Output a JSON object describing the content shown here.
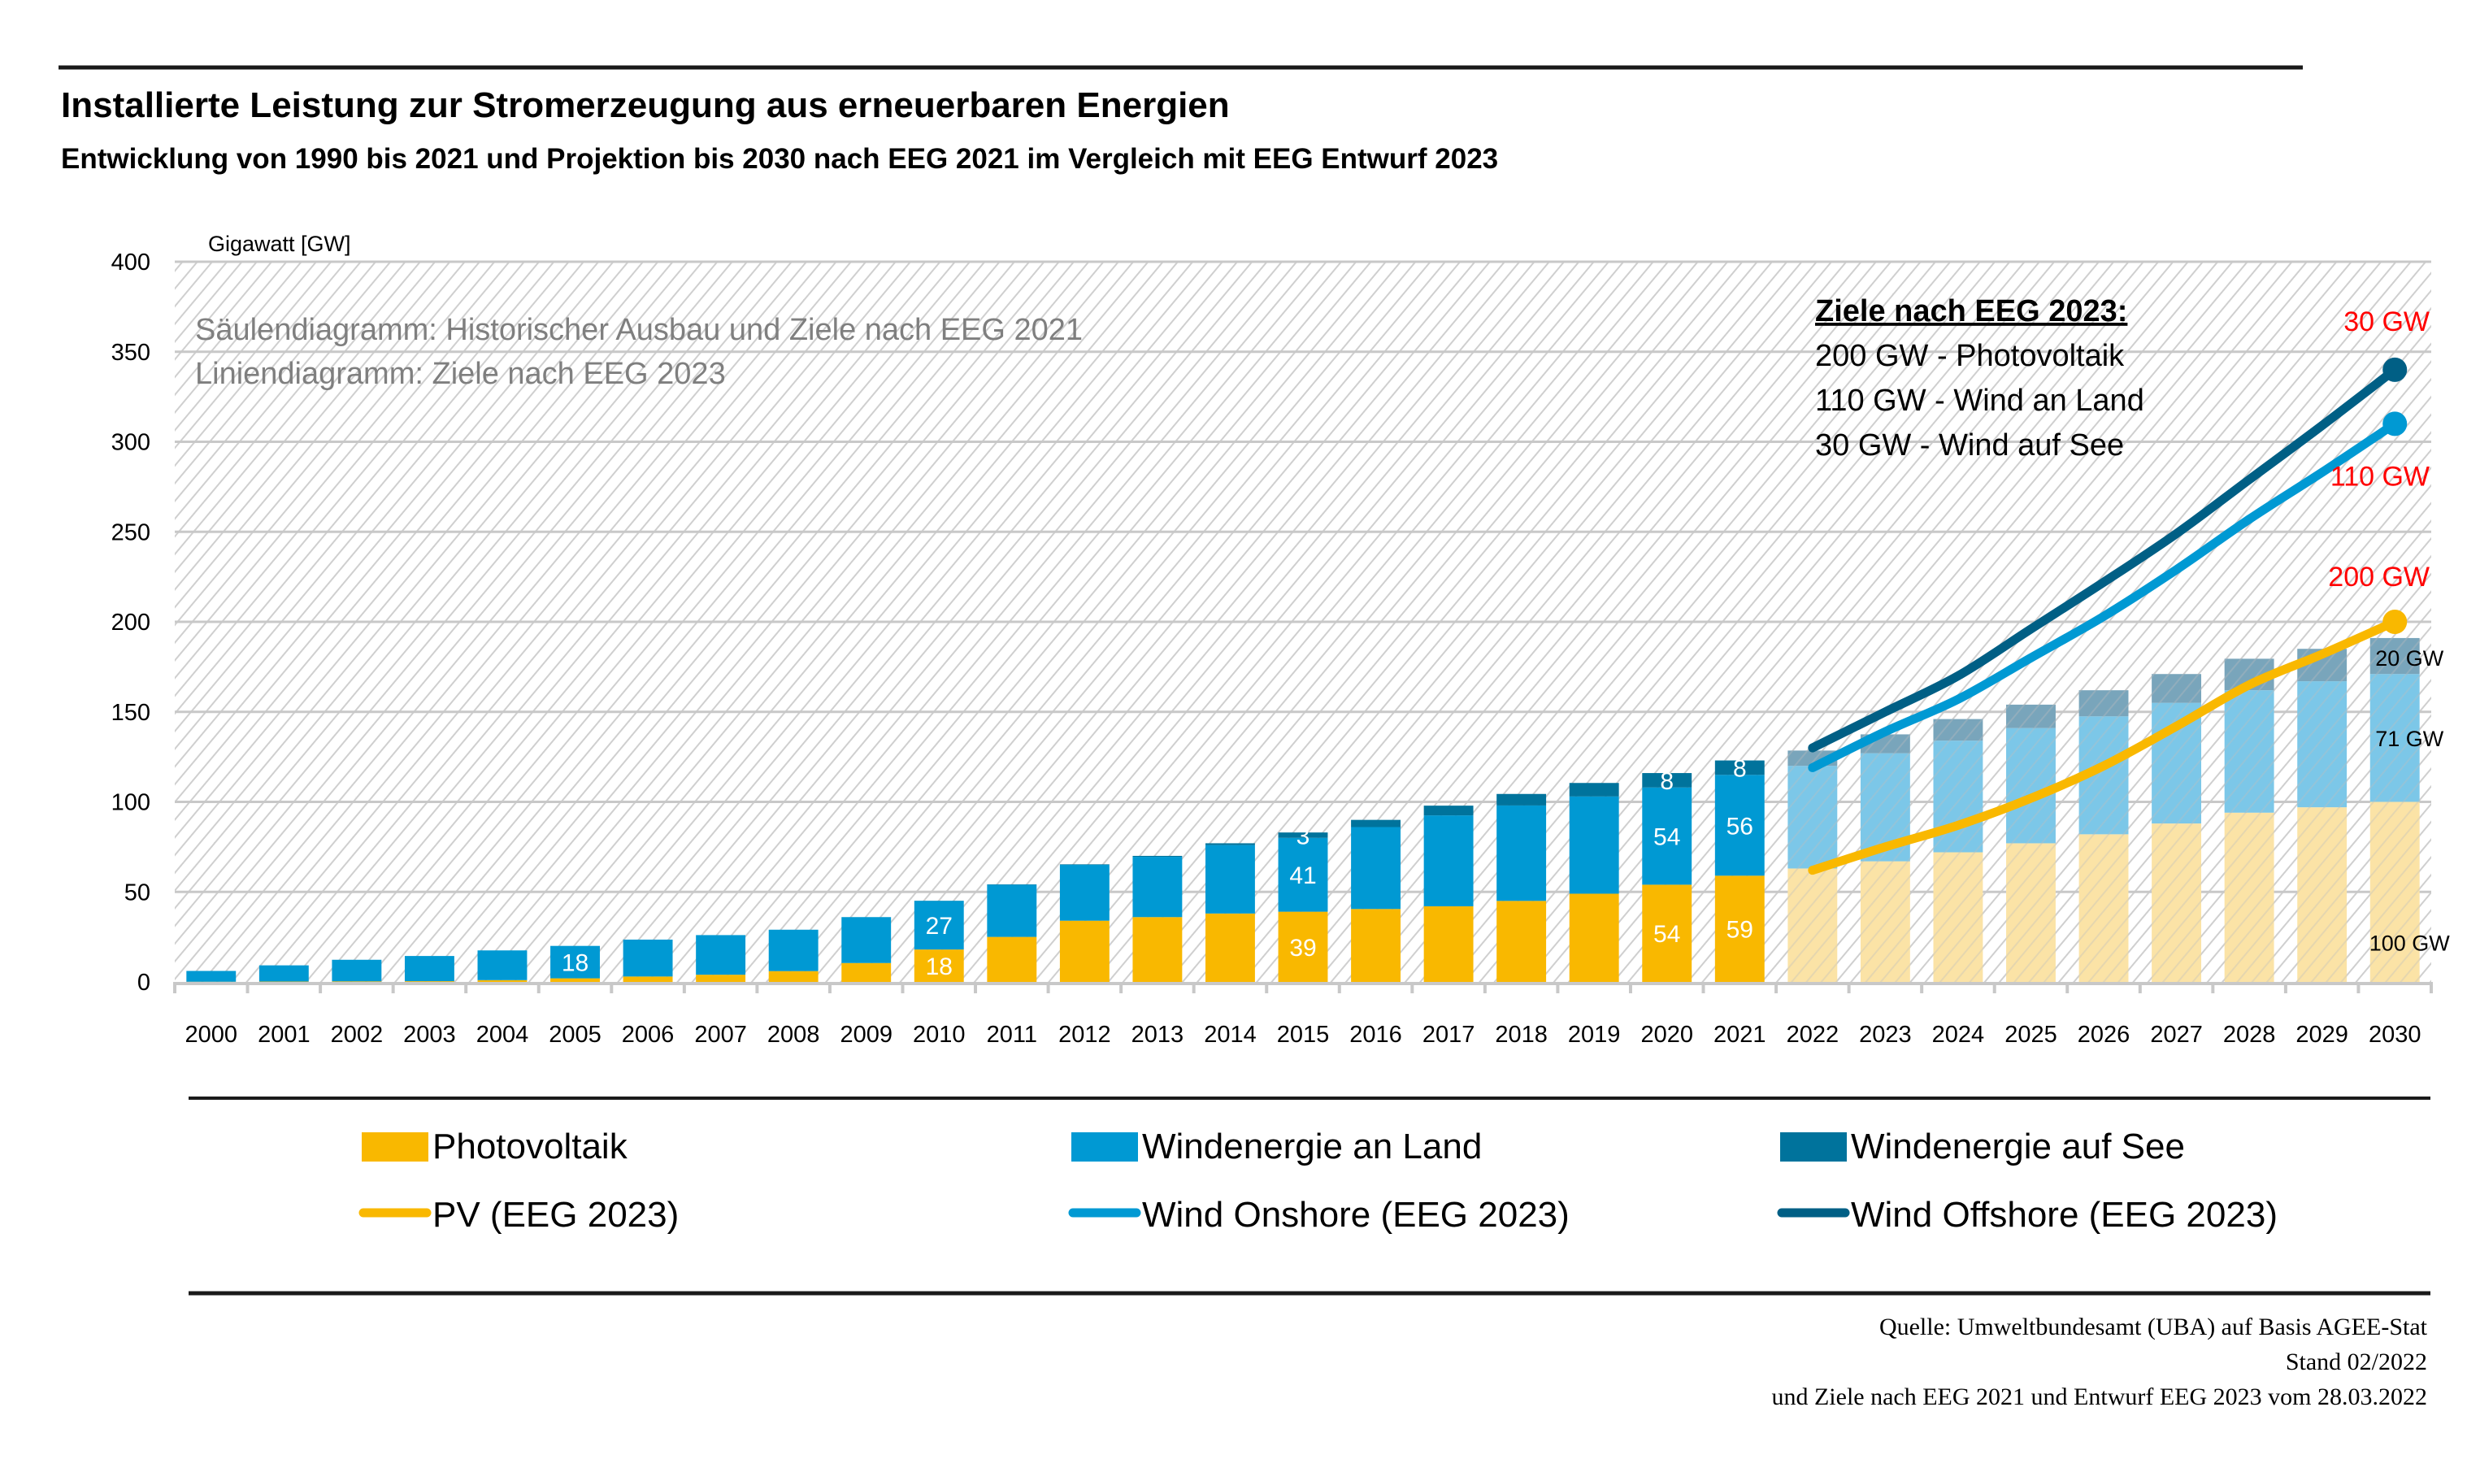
{
  "header": {
    "title": "Installierte Leistung zur Stromerzeugung aus erneuerbaren Energien",
    "subtitle": "Entwicklung von 1990 bis 2021 und Projektion bis 2030 nach EEG 2021 im Vergleich mit EEG Entwurf 2023"
  },
  "notes": {
    "bars": "Säulendiagramm: Historischer Ausbau und Ziele nach EEG 2021",
    "lines": "Liniendiagramm: Ziele nach EEG 2023"
  },
  "goals_box": {
    "heading": "Ziele nach EEG 2023:",
    "lines": [
      "200 GW - Photovoltaik",
      "110 GW -  Wind an Land",
      "30 GW - Wind auf See"
    ]
  },
  "colors": {
    "pv": "#f9b800",
    "onshore": "#0099d3",
    "offshore": "#00739c",
    "pv_proj": "#fbe3a6",
    "onshore_proj": "#7cc7e8",
    "offshore_proj": "#79a5bb",
    "pv_line": "#f9b800",
    "onshore_line": "#0099d3",
    "offshore_line": "#005f85",
    "target_label": "#ff0000"
  },
  "chart_data": {
    "type": "bar",
    "subtype": "stacked bar with overlaid cumulative lines",
    "title": "Installierte Leistung zur Stromerzeugung aus erneuerbaren Energien",
    "subtitle": "Entwicklung von 1990 bis 2021 und Projektion bis 2030 nach EEG 2021 im Vergleich mit EEG Entwurf 2023",
    "xlabel": "",
    "ylabel": "Gigawatt [GW]",
    "ylim": [
      0,
      400
    ],
    "yticks": [
      0,
      50,
      100,
      150,
      200,
      250,
      300,
      350,
      400
    ],
    "grid": true,
    "categories": [
      "2000",
      "2001",
      "2002",
      "2003",
      "2004",
      "2005",
      "2006",
      "2007",
      "2008",
      "2009",
      "2010",
      "2011",
      "2012",
      "2013",
      "2014",
      "2015",
      "2016",
      "2017",
      "2018",
      "2019",
      "2020",
      "2021",
      "2022",
      "2023",
      "2024",
      "2025",
      "2026",
      "2027",
      "2028",
      "2029",
      "2030"
    ],
    "projection_from": "2022",
    "series": [
      {
        "name": "Photovoltaik",
        "kind": "bar",
        "values": [
          0.1,
          0.2,
          0.3,
          0.4,
          1,
          2,
          3,
          4,
          6,
          10.5,
          18,
          25,
          34,
          36,
          38,
          39,
          40.5,
          42,
          45,
          49,
          54,
          59,
          63,
          67,
          72,
          77,
          82,
          88,
          94,
          97,
          100
        ]
      },
      {
        "name": "Windenergie an Land",
        "kind": "bar",
        "values": [
          6,
          9,
          12,
          14,
          16.5,
          18,
          20.5,
          22,
          23,
          25.5,
          27,
          29,
          31,
          33.5,
          38,
          41,
          45.5,
          50.5,
          53,
          54,
          54,
          56,
          57,
          60,
          62,
          64,
          65.5,
          67,
          68,
          70,
          71
        ]
      },
      {
        "name": "Windenergie auf See",
        "kind": "bar",
        "values": [
          0,
          0,
          0,
          0,
          0,
          0,
          0,
          0,
          0,
          0,
          0.1,
          0.2,
          0.3,
          0.5,
          1,
          3,
          4,
          5.4,
          6.4,
          7.5,
          8,
          8,
          8.5,
          10.5,
          12,
          13,
          14.5,
          16,
          17.5,
          18,
          20
        ]
      },
      {
        "name": "PV (EEG 2023)",
        "kind": "line",
        "x": [
          "2022",
          "2023",
          "2024",
          "2025",
          "2026",
          "2027",
          "2028",
          "2029",
          "2030"
        ],
        "values": [
          62,
          75,
          87,
          102,
          120,
          142,
          165,
          182,
          200
        ]
      },
      {
        "name": "Wind Onshore (EEG 2023)",
        "kind": "line",
        "cumulative": true,
        "x": [
          "2022",
          "2023",
          "2024",
          "2025",
          "2026",
          "2027",
          "2028",
          "2029",
          "2030"
        ],
        "values": [
          119,
          139,
          157,
          180,
          203,
          229,
          257,
          283,
          310
        ]
      },
      {
        "name": "Wind Offshore (EEG 2023)",
        "kind": "line",
        "cumulative": true,
        "x": [
          "2022",
          "2023",
          "2024",
          "2025",
          "2026",
          "2027",
          "2028",
          "2029",
          "2030"
        ],
        "values": [
          130,
          150,
          170,
          196,
          222,
          249,
          279,
          309,
          340
        ]
      }
    ],
    "data_labels": [
      {
        "category": "2005",
        "series": "Windenergie an Land",
        "text": "18"
      },
      {
        "category": "2010",
        "series": "Photovoltaik",
        "text": "18"
      },
      {
        "category": "2010",
        "series": "Windenergie an Land",
        "text": "27"
      },
      {
        "category": "2015",
        "series": "Photovoltaik",
        "text": "39"
      },
      {
        "category": "2015",
        "series": "Windenergie an Land",
        "text": "41"
      },
      {
        "category": "2015",
        "series": "Windenergie auf See",
        "text": "3"
      },
      {
        "category": "2020",
        "series": "Photovoltaik",
        "text": "54"
      },
      {
        "category": "2020",
        "series": "Windenergie an Land",
        "text": "54"
      },
      {
        "category": "2020",
        "series": "Windenergie auf See",
        "text": "8"
      },
      {
        "category": "2021",
        "series": "Photovoltaik",
        "text": "59"
      },
      {
        "category": "2021",
        "series": "Windenergie an Land",
        "text": "56"
      },
      {
        "category": "2021",
        "series": "Windenergie auf See",
        "text": "8"
      }
    ],
    "end_labels_2030_bars": [
      {
        "series": "Photovoltaik",
        "text": "100 GW"
      },
      {
        "series": "Windenergie an Land",
        "text": "71 GW"
      },
      {
        "series": "Windenergie auf See",
        "text": "20 GW"
      }
    ],
    "target_labels_2030_lines": [
      {
        "series": "Wind Offshore (EEG 2023)",
        "text": "30 GW"
      },
      {
        "series": "Wind Onshore (EEG 2023)",
        "text": "110 GW"
      },
      {
        "series": "PV (EEG 2023)",
        "text": "200 GW"
      }
    ],
    "legend": {
      "placement": "bottom",
      "entries": [
        {
          "label": "Photovoltaik",
          "type": "box",
          "color": "#f9b800"
        },
        {
          "label": "Windenergie an Land",
          "type": "box",
          "color": "#0099d3"
        },
        {
          "label": "Windenergie auf See",
          "type": "box",
          "color": "#00739c"
        },
        {
          "label": "PV (EEG 2023)",
          "type": "line",
          "color": "#f9b800"
        },
        {
          "label": "Wind Onshore (EEG 2023)",
          "type": "line",
          "color": "#0099d3"
        },
        {
          "label": "Wind Offshore (EEG 2023)",
          "type": "line",
          "color": "#005f85"
        }
      ]
    }
  },
  "footer": {
    "lines": [
      "Quelle: Umweltbundesamt (UBA) auf Basis AGEE-Stat",
      "Stand 02/2022",
      "und  Ziele nach EEG 2021 und Entwurf EEG 2023 vom 28.03.2022"
    ]
  }
}
